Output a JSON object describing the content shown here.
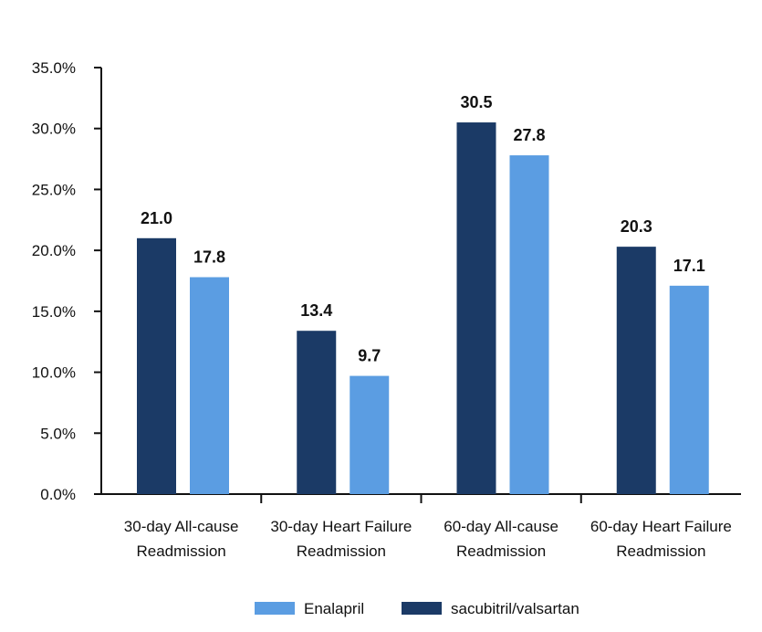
{
  "chart_data": {
    "type": "bar",
    "title": "",
    "xlabel": "",
    "ylabel": "",
    "categories": [
      [
        "30-day All-cause",
        "Readmission"
      ],
      [
        "30-day Heart Failure",
        "Readmission"
      ],
      [
        "60-day All-cause",
        "Readmission"
      ],
      [
        "60-day Heart Failure",
        "Readmission"
      ]
    ],
    "series": [
      {
        "name": "sacubitril/valsartan",
        "color": "#1b3a66",
        "values": [
          21.0,
          13.4,
          30.5,
          20.3
        ],
        "labels": [
          "21.0",
          "13.4",
          "30.5",
          "20.3"
        ]
      },
      {
        "name": "Enalapril",
        "color": "#5b9de2",
        "values": [
          17.8,
          9.7,
          27.8,
          17.1
        ],
        "labels": [
          "17.8",
          "9.7",
          "27.8",
          "17.1"
        ]
      }
    ],
    "ylim": [
      0,
      35
    ],
    "yticks": [
      "0.0%",
      "5.0%",
      "10.0%",
      "15.0%",
      "20.0%",
      "25.0%",
      "30.0%",
      "35.0%"
    ],
    "ytick_values": [
      0,
      5,
      10,
      15,
      20,
      25,
      30,
      35
    ],
    "grid": false,
    "legend": {
      "placement": "bottom-center",
      "order": [
        "Enalapril",
        "sacubitril/valsartan"
      ]
    }
  }
}
